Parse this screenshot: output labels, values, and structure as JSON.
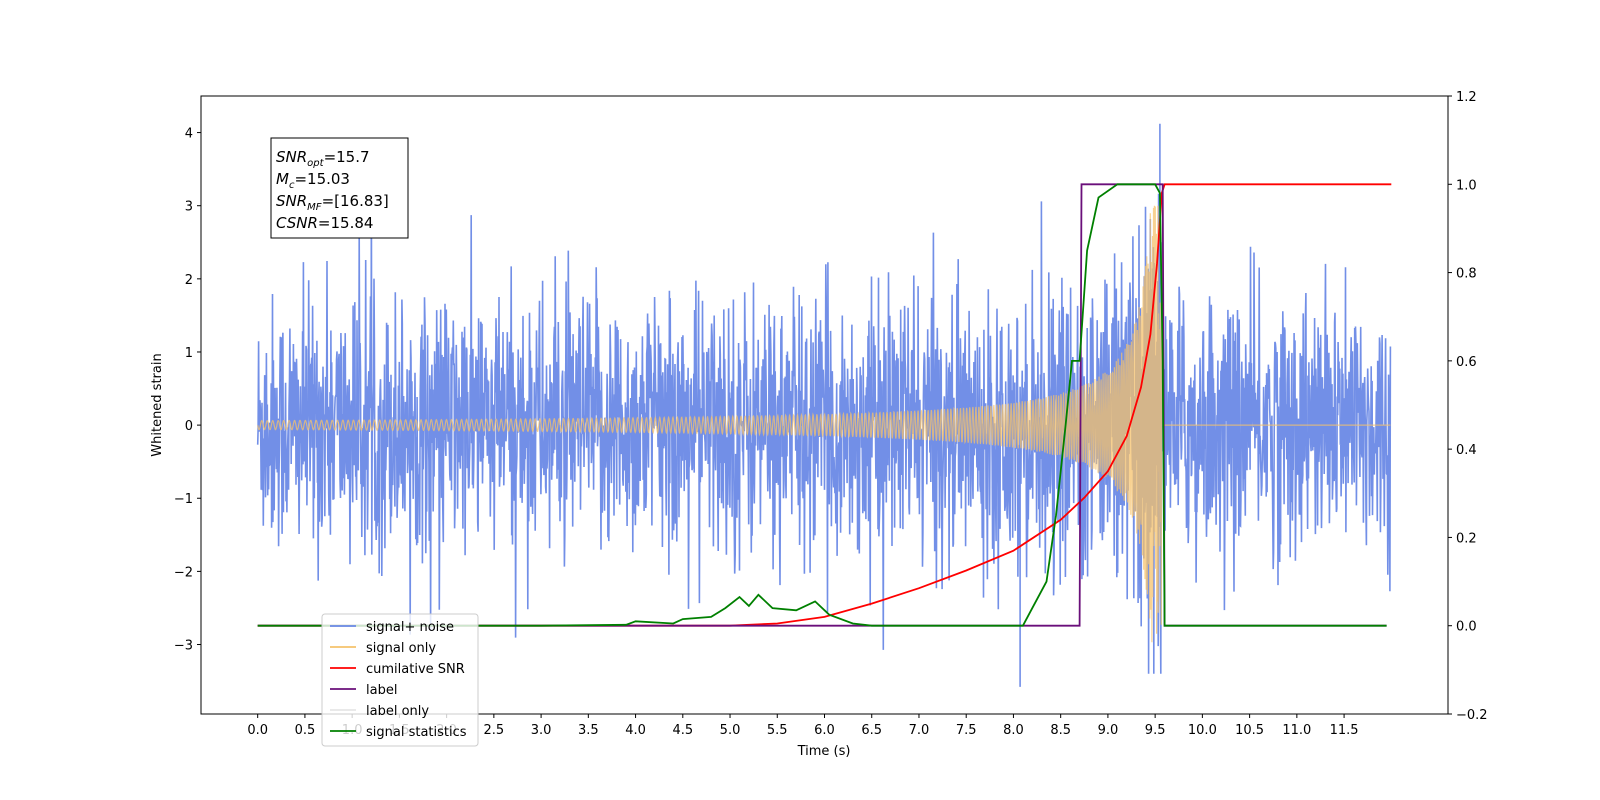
{
  "chart_data": {
    "type": "line",
    "xlabel": "Time (s)",
    "ylabel": "Whitened strain",
    "xlim": [
      -0.6,
      12.6
    ],
    "ylim": [
      -3.95,
      4.5
    ],
    "y2lim": [
      -0.2,
      1.2
    ],
    "x_ticks": [
      "0.0",
      "0.5",
      "1.0",
      "1.5",
      "2.0",
      "2.5",
      "3.0",
      "3.5",
      "4.0",
      "4.5",
      "5.0",
      "5.5",
      "6.0",
      "6.5",
      "7.0",
      "7.5",
      "8.0",
      "8.5",
      "9.0",
      "9.5",
      "10.0",
      "10.5",
      "11.0",
      "11.5"
    ],
    "y_ticks": [
      -3,
      -2,
      -1,
      0,
      1,
      2,
      3,
      4
    ],
    "y2_ticks": [
      "−0.2",
      "0.0",
      "0.2",
      "0.4",
      "0.6",
      "0.8",
      "1.0",
      "1.2"
    ],
    "legend_position": "lower-left",
    "annotation": {
      "lines": [
        {
          "sym": "SNR",
          "sub": "opt",
          "value": "=15.7"
        },
        {
          "sym": "M",
          "sub": "c",
          "value": "=15.03"
        },
        {
          "sym": "SNR",
          "sub": "MF",
          "value": "=[16.83]"
        },
        {
          "sym": "CSNR",
          "sub": "",
          "value": "=15.84"
        }
      ]
    },
    "series": [
      {
        "name": "signal+ noise",
        "color": "#6a89e6",
        "axis": "left",
        "kind": "noise",
        "x_range": [
          0.0,
          11.99
        ],
        "std": 1.1,
        "extrema_y": [
          4.12,
          -3.58
        ],
        "extrema_x": [
          9.55,
          8.07
        ]
      },
      {
        "name": "signal only",
        "color": "#f5c26b",
        "axis": "left",
        "kind": "chirp",
        "x_range": [
          0.0,
          11.99
        ],
        "merger_x": 9.58,
        "peak_amp": 3.0
      },
      {
        "name": "cumilative SNR",
        "color": "#ff0000",
        "axis": "right",
        "points": [
          [
            0.0,
            0.0
          ],
          [
            5.0,
            0.0
          ],
          [
            5.5,
            0.005
          ],
          [
            6.0,
            0.02
          ],
          [
            6.5,
            0.05
          ],
          [
            7.0,
            0.085
          ],
          [
            7.5,
            0.125
          ],
          [
            8.0,
            0.17
          ],
          [
            8.5,
            0.24
          ],
          [
            8.75,
            0.29
          ],
          [
            9.0,
            0.35
          ],
          [
            9.2,
            0.43
          ],
          [
            9.35,
            0.54
          ],
          [
            9.45,
            0.66
          ],
          [
            9.52,
            0.82
          ],
          [
            9.57,
            0.98
          ],
          [
            9.6,
            1.0
          ],
          [
            12.0,
            1.0
          ]
        ]
      },
      {
        "name": "label",
        "color": "#6a0f7a",
        "axis": "right",
        "points": [
          [
            0.0,
            0.0
          ],
          [
            8.7,
            0.0
          ],
          [
            8.72,
            1.0
          ],
          [
            9.58,
            1.0
          ],
          [
            9.6,
            0.0
          ],
          [
            11.95,
            0.0
          ]
        ]
      },
      {
        "name": "label only",
        "color": "#e6e6e6",
        "axis": "right",
        "points": []
      },
      {
        "name": "signal statistics",
        "color": "#008000",
        "axis": "right",
        "points": [
          [
            0.0,
            0.0
          ],
          [
            3.0,
            0.0
          ],
          [
            3.9,
            0.002
          ],
          [
            4.0,
            0.01
          ],
          [
            4.4,
            0.005
          ],
          [
            4.5,
            0.015
          ],
          [
            4.8,
            0.02
          ],
          [
            4.95,
            0.04
          ],
          [
            5.1,
            0.065
          ],
          [
            5.2,
            0.045
          ],
          [
            5.3,
            0.07
          ],
          [
            5.45,
            0.04
          ],
          [
            5.7,
            0.035
          ],
          [
            5.9,
            0.055
          ],
          [
            6.05,
            0.025
          ],
          [
            6.3,
            0.005
          ],
          [
            6.5,
            0.0
          ],
          [
            8.1,
            0.0
          ],
          [
            8.2,
            0.04
          ],
          [
            8.35,
            0.1
          ],
          [
            8.45,
            0.25
          ],
          [
            8.55,
            0.45
          ],
          [
            8.62,
            0.6
          ],
          [
            8.7,
            0.6
          ],
          [
            8.78,
            0.85
          ],
          [
            8.9,
            0.97
          ],
          [
            9.1,
            1.0
          ],
          [
            9.5,
            1.0
          ],
          [
            9.55,
            0.98
          ],
          [
            9.58,
            0.6
          ],
          [
            9.6,
            0.0
          ],
          [
            11.95,
            0.0
          ]
        ]
      }
    ]
  }
}
